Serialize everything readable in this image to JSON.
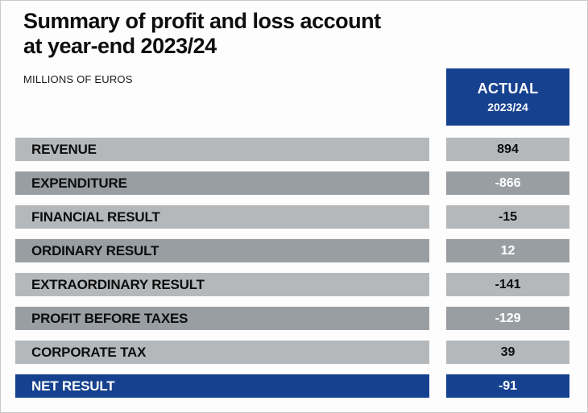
{
  "title": {
    "line1": "Summary of profit and loss account",
    "line2": "at year-end 2023/24"
  },
  "subtitle": "MILLIONS OF EUROS",
  "header": {
    "label": "ACTUAL",
    "period": "2023/24"
  },
  "table": {
    "rows": [
      {
        "label": "REVENUE",
        "value": "894"
      },
      {
        "label": "EXPENDITURE",
        "value": "-866"
      },
      {
        "label": "FINANCIAL RESULT",
        "value": "-15"
      },
      {
        "label": "ORDINARY RESULT",
        "value": "12"
      },
      {
        "label": "EXTRAORDINARY RESULT",
        "value": "-141"
      },
      {
        "label": "PROFIT BEFORE TAXES",
        "value": "-129"
      },
      {
        "label": "CORPORATE TAX",
        "value": "39"
      },
      {
        "label": "NET RESULT",
        "value": "-91"
      }
    ]
  },
  "chart_data": {
    "type": "table",
    "title": "Summary of profit and loss account at year-end 2023/24",
    "unit": "MILLIONS OF EUROS",
    "columns": [
      "",
      "ACTUAL 2023/24"
    ],
    "categories": [
      "REVENUE",
      "EXPENDITURE",
      "FINANCIAL RESULT",
      "ORDINARY RESULT",
      "EXTRAORDINARY RESULT",
      "PROFIT BEFORE TAXES",
      "CORPORATE TAX",
      "NET RESULT"
    ],
    "values": [
      894,
      -866,
      -15,
      12,
      -141,
      -129,
      39,
      -91
    ]
  },
  "colors": {
    "accent_blue": "#16418f",
    "row_light": "#b5b8bb",
    "row_mid": "#999ea3",
    "text_dark": "#0d0d0d",
    "text_light": "#ffffff"
  }
}
